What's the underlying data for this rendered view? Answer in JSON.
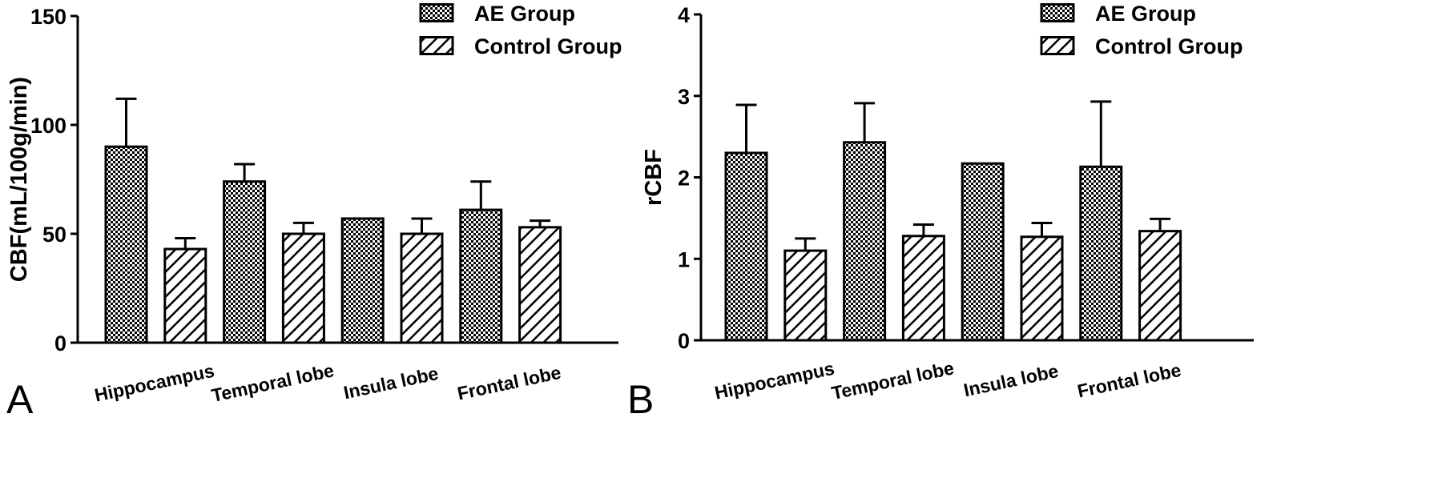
{
  "chart_data": [
    {
      "type": "bar",
      "panel_label": "A",
      "ylabel": "CBF(mL/100g/min)",
      "xlabel": "",
      "ylim": [
        0,
        150
      ],
      "yticks": [
        "0",
        "50",
        "100",
        "150"
      ],
      "categories": [
        "Hippocampus",
        "Temporal lobe",
        "Insula lobe",
        "Frontal lobe"
      ],
      "series": [
        {
          "name": "AE Group",
          "values": [
            90,
            74,
            57,
            61
          ],
          "error": [
            22,
            8,
            0,
            13
          ]
        },
        {
          "name": "Control Group",
          "values": [
            43,
            50,
            50,
            53
          ],
          "error": [
            5,
            5,
            7,
            3
          ]
        }
      ],
      "grid": false,
      "legend_position": "top-right"
    },
    {
      "type": "bar",
      "panel_label": "B",
      "ylabel": "rCBF",
      "xlabel": "",
      "ylim": [
        0,
        4
      ],
      "yticks": [
        "0",
        "1",
        "2",
        "3",
        "4"
      ],
      "categories": [
        "Hippocampus",
        "Temporal lobe",
        "Insula lobe",
        "Frontal lobe"
      ],
      "series": [
        {
          "name": "AE Group",
          "values": [
            2.3,
            2.43,
            2.17,
            2.13
          ],
          "error": [
            0.59,
            0.48,
            0,
            0.8
          ]
        },
        {
          "name": "Control Group",
          "values": [
            1.1,
            1.28,
            1.27,
            1.34
          ],
          "error": [
            0.15,
            0.14,
            0.17,
            0.15
          ]
        }
      ],
      "grid": false,
      "legend_position": "top-right"
    }
  ],
  "colors": {
    "axis": "#000000",
    "background": "#ffffff",
    "fill": "#000000"
  }
}
